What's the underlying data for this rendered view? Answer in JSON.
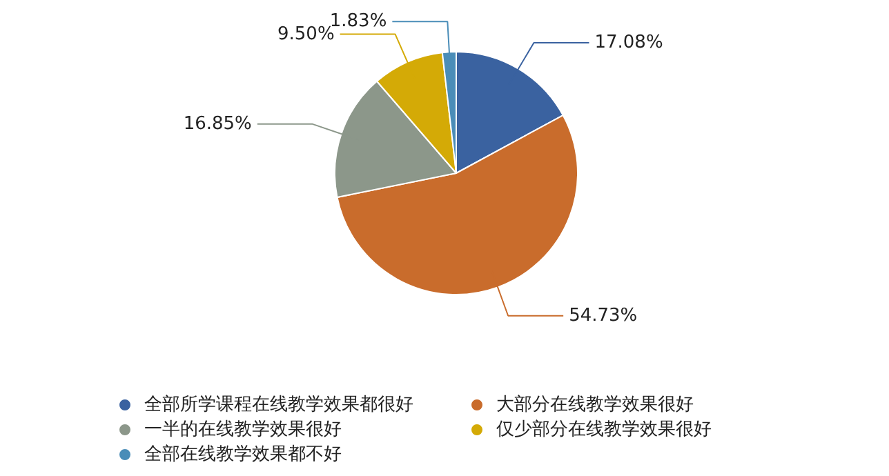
{
  "chart_data": {
    "type": "pie",
    "categories": [
      "全部所学课程在线教学效果都很好",
      "大部分在线教学效果很好",
      "一半的在线教学效果很好",
      "仅少部分在线教学效果很好",
      "全部在线教学效果都不好"
    ],
    "values": [
      17.08,
      54.73,
      16.85,
      9.5,
      1.83
    ],
    "colors": [
      "#3a62a0",
      "#c96c2c",
      "#8c978a",
      "#d4aa06",
      "#4a8db8"
    ],
    "value_labels": [
      "17.08%",
      "54.73%",
      "16.85%",
      "9.50%",
      "1.83%"
    ],
    "legend": "bottom"
  }
}
